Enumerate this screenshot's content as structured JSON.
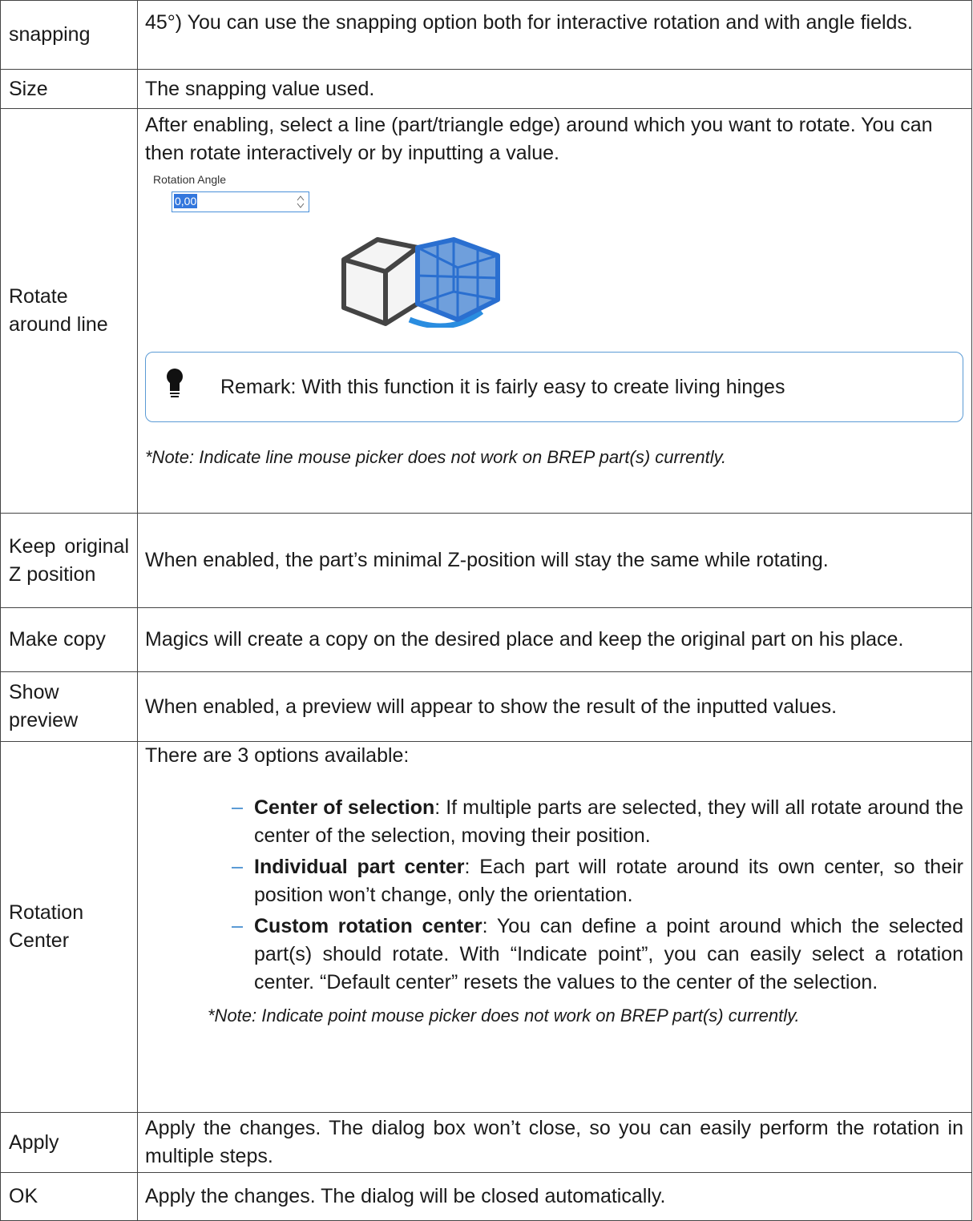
{
  "table": {
    "rows": [
      {
        "label": "snapping",
        "text": "45°) You can use the snapping option both for interactive rotation and with angle fields."
      },
      {
        "label": "Size",
        "text": "The snapping value used."
      },
      {
        "label": "Rotate around line",
        "text": "After enabling, select a line (part/triangle edge) around which you want to rotate. You can then rotate interactively or by inputting a value.",
        "figure": {
          "field_label": "Rotation Angle",
          "field_value": "0,00"
        },
        "remark": "Remark: With this function it is fairly easy to create living hinges",
        "note": "*Note: Indicate line mouse picker does not work on BREP part(s) currently."
      },
      {
        "label": "Keep original Z position",
        "text": "When enabled, the part’s minimal Z-position will stay the same while rotating."
      },
      {
        "label": "Make copy",
        "text": "Magics will create a copy on the desired place and keep the original part on his place."
      },
      {
        "label": "Show preview",
        "text": "When enabled, a preview will appear to show the result of the inputted values."
      },
      {
        "label": "Rotation Center",
        "text": "There are 3 options available:",
        "items": [
          {
            "term": "Center of selection",
            "text": ": If multiple parts are selected, they will all rotate around the center of the selection, moving their position."
          },
          {
            "term": "Individual part center",
            "text": ": Each part will rotate around its own center, so their position won’t change, only the orientation."
          },
          {
            "term": "Custom rotation center",
            "text": ": You can define a point around which the selected part(s) should rotate. With “Indicate point”, you can easily select a rotation center. “Default center” resets the values to the center of the selection."
          }
        ],
        "note": "*Note: Indicate point mouse picker does not work on BREP part(s) currently."
      },
      {
        "label": "Apply",
        "text": "Apply the changes. The dialog box won’t close, so you can easily perform the rotation in multiple steps."
      },
      {
        "label": "OK",
        "text": "Apply the changes. The dialog will be closed automatically."
      }
    ]
  }
}
